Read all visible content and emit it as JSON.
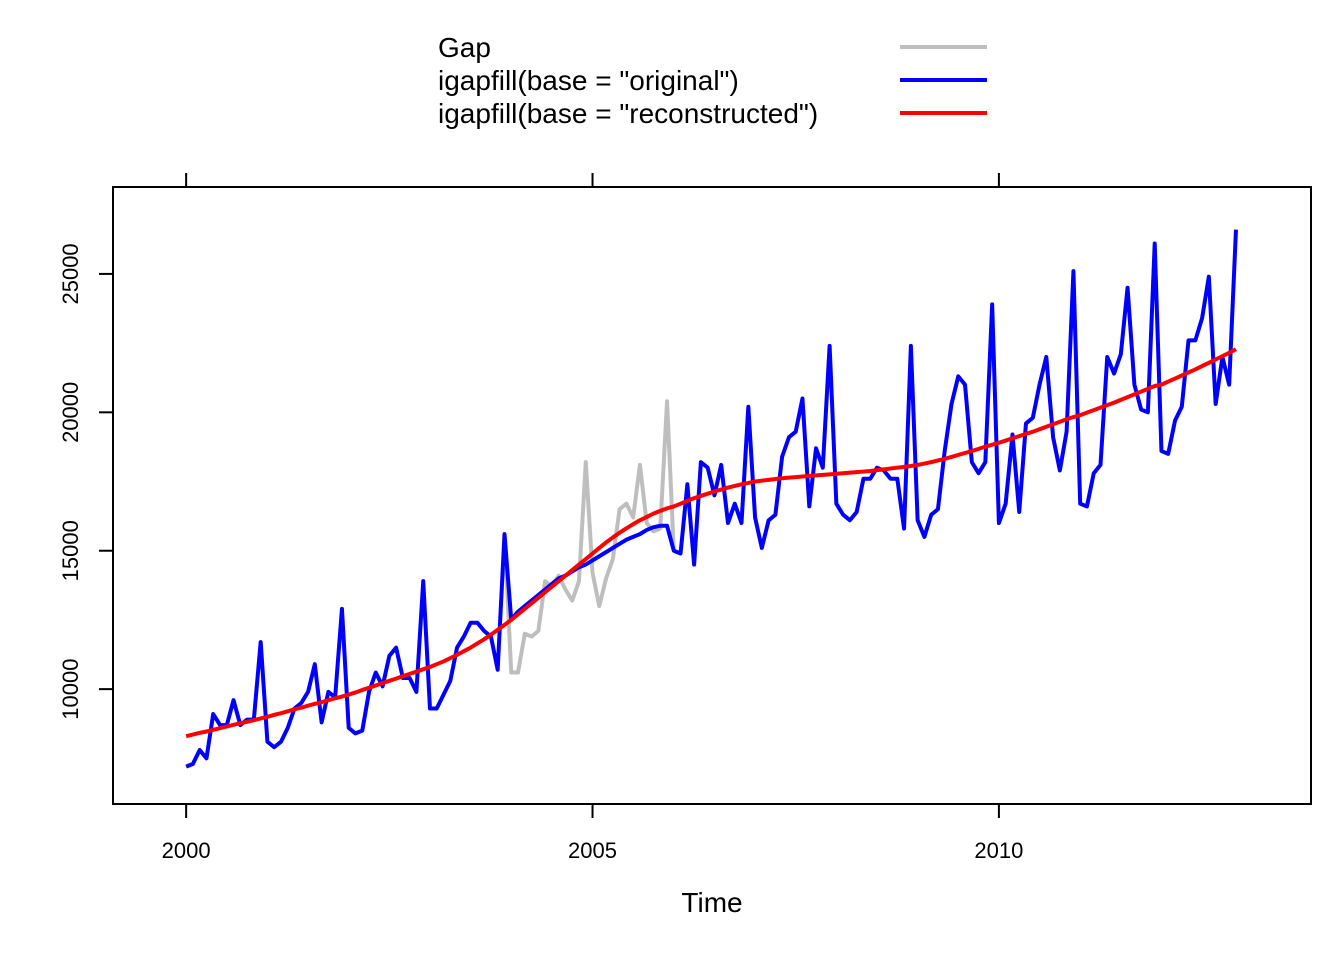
{
  "chart_data": {
    "type": "line",
    "xlabel": "Time",
    "x": [
      2000,
      2000.083,
      2000.167,
      2000.25,
      2000.333,
      2000.417,
      2000.5,
      2000.583,
      2000.667,
      2000.75,
      2000.833,
      2000.917,
      2001,
      2001.083,
      2001.167,
      2001.25,
      2001.333,
      2001.417,
      2001.5,
      2001.583,
      2001.667,
      2001.75,
      2001.833,
      2001.917,
      2002,
      2002.083,
      2002.167,
      2002.25,
      2002.333,
      2002.417,
      2002.5,
      2002.583,
      2002.667,
      2002.75,
      2002.833,
      2002.917,
      2003,
      2003.083,
      2003.167,
      2003.25,
      2003.333,
      2003.417,
      2003.5,
      2003.583,
      2003.667,
      2003.75,
      2003.833,
      2003.917,
      2004,
      2004.083,
      2004.167,
      2004.25,
      2004.333,
      2004.417,
      2004.5,
      2004.583,
      2004.667,
      2004.75,
      2004.833,
      2004.917,
      2005,
      2005.083,
      2005.167,
      2005.25,
      2005.333,
      2005.417,
      2005.5,
      2005.583,
      2005.667,
      2005.75,
      2005.833,
      2005.917,
      2006,
      2006.083,
      2006.167,
      2006.25,
      2006.333,
      2006.417,
      2006.5,
      2006.583,
      2006.667,
      2006.75,
      2006.833,
      2006.917,
      2007,
      2007.083,
      2007.167,
      2007.25,
      2007.333,
      2007.417,
      2007.5,
      2007.583,
      2007.667,
      2007.75,
      2007.833,
      2007.917,
      2008,
      2008.083,
      2008.167,
      2008.25,
      2008.333,
      2008.417,
      2008.5,
      2008.583,
      2008.667,
      2008.75,
      2008.833,
      2008.917,
      2009,
      2009.083,
      2009.167,
      2009.25,
      2009.333,
      2009.417,
      2009.5,
      2009.583,
      2009.667,
      2009.75,
      2009.833,
      2009.917,
      2010,
      2010.083,
      2010.167,
      2010.25,
      2010.333,
      2010.417,
      2010.5,
      2010.583,
      2010.667,
      2010.75,
      2010.833,
      2010.917,
      2011,
      2011.083,
      2011.167,
      2011.25,
      2011.333,
      2011.417,
      2011.5,
      2011.583,
      2011.667,
      2011.75,
      2011.833,
      2011.917,
      2012,
      2012.083,
      2012.167,
      2012.25,
      2012.333,
      2012.417,
      2012.5,
      2012.583,
      2012.667,
      2012.75,
      2012.833,
      2012.917
    ],
    "series": [
      {
        "name": "Gap",
        "color": "#bebebe",
        "values": [
          null,
          null,
          null,
          null,
          null,
          null,
          null,
          null,
          null,
          null,
          null,
          null,
          null,
          null,
          null,
          null,
          null,
          null,
          null,
          null,
          null,
          null,
          null,
          null,
          null,
          null,
          null,
          null,
          null,
          null,
          null,
          null,
          null,
          null,
          null,
          null,
          null,
          null,
          null,
          null,
          null,
          null,
          null,
          null,
          null,
          null,
          null,
          15600,
          10600,
          10600,
          12000,
          11900,
          12100,
          13900,
          13700,
          14100,
          13600,
          13200,
          13900,
          18200,
          14200,
          13000,
          14000,
          14700,
          16500,
          16700,
          16200,
          18100,
          16000,
          15700,
          15800,
          20400,
          15000,
          null,
          null,
          null,
          null,
          null,
          null,
          null,
          null,
          null,
          null,
          null,
          null,
          null,
          null,
          null,
          null,
          null,
          null,
          null,
          null,
          null,
          null,
          null,
          null,
          null,
          null,
          null,
          null,
          null,
          null,
          null,
          null,
          null,
          null,
          null,
          null,
          null,
          null,
          null,
          null,
          null,
          null,
          null,
          null,
          null,
          null,
          null,
          null,
          null,
          null,
          null,
          null,
          null,
          null,
          null,
          null,
          null,
          null,
          null,
          null,
          null,
          null,
          null,
          null,
          null,
          null,
          null,
          null,
          null,
          null,
          null,
          null,
          null,
          null,
          null,
          null,
          null,
          null,
          null,
          null,
          null,
          null,
          null
        ]
      },
      {
        "name": "igapfill(base = \"original\")",
        "color": "#0000ff",
        "values": [
          7200,
          7300,
          7800,
          7500,
          9100,
          8700,
          8700,
          9600,
          8700,
          8900,
          8900,
          11700,
          8100,
          7900,
          8100,
          8600,
          9300,
          9500,
          9900,
          10900,
          8800,
          9900,
          9700,
          12900,
          8600,
          8400,
          8500,
          9900,
          10600,
          10100,
          11200,
          11500,
          10400,
          10400,
          9900,
          13900,
          9300,
          9300,
          9800,
          10300,
          11500,
          11900,
          12400,
          12400,
          12100,
          11900,
          10700,
          15600,
          12500,
          12800,
          13000,
          13200,
          13400,
          13600,
          13800,
          14000,
          14100,
          14250,
          14400,
          14500,
          14650,
          14800,
          14950,
          15100,
          15250,
          15400,
          15500,
          15600,
          15750,
          15850,
          15900,
          15900,
          15000,
          14900,
          17400,
          14500,
          18200,
          18000,
          17000,
          18100,
          16000,
          16700,
          16000,
          20200,
          16200,
          15100,
          16100,
          16300,
          18400,
          19100,
          19300,
          20500,
          16600,
          18700,
          18000,
          22400,
          16700,
          16300,
          16100,
          16400,
          17600,
          17600,
          18000,
          17900,
          17600,
          17600,
          15800,
          22400,
          16100,
          15500,
          16300,
          16500,
          18600,
          20300,
          21300,
          21000,
          18200,
          17800,
          18200,
          23900,
          16000,
          16700,
          19200,
          16400,
          19600,
          19800,
          21000,
          22000,
          19100,
          17900,
          19300,
          25100,
          16700,
          16600,
          17800,
          18100,
          22000,
          21400,
          22100,
          24500,
          21000,
          20100,
          20000,
          26100,
          18600,
          18500,
          19700,
          20200,
          22600,
          22600,
          23400,
          24900,
          20300,
          22000,
          21000,
          26600
        ]
      },
      {
        "name": "igapfill(base = \"reconstructed\")",
        "color": "#ff0000",
        "values": [
          8300,
          8360,
          8420,
          8470,
          8530,
          8590,
          8650,
          8710,
          8770,
          8820,
          8880,
          8940,
          9000,
          9070,
          9130,
          9200,
          9270,
          9330,
          9400,
          9470,
          9530,
          9600,
          9670,
          9730,
          9800,
          9880,
          9970,
          10050,
          10130,
          10220,
          10300,
          10380,
          10470,
          10550,
          10630,
          10720,
          10800,
          10900,
          11000,
          11120,
          11240,
          11370,
          11500,
          11650,
          11800,
          11970,
          12140,
          12320,
          12500,
          12700,
          12900,
          13100,
          13300,
          13500,
          13700,
          13900,
          14100,
          14300,
          14500,
          14700,
          14900,
          15100,
          15300,
          15480,
          15650,
          15810,
          15960,
          16100,
          16220,
          16340,
          16440,
          16530,
          16600,
          16700,
          16800,
          16900,
          16980,
          17060,
          17140,
          17210,
          17280,
          17340,
          17400,
          17450,
          17500,
          17530,
          17560,
          17590,
          17620,
          17640,
          17660,
          17680,
          17700,
          17720,
          17740,
          17760,
          17780,
          17800,
          17820,
          17840,
          17860,
          17880,
          17910,
          17940,
          17970,
          18000,
          18030,
          18060,
          18100,
          18150,
          18200,
          18260,
          18320,
          18390,
          18460,
          18530,
          18600,
          18680,
          18760,
          18830,
          18900,
          18980,
          19060,
          19140,
          19220,
          19300,
          19390,
          19480,
          19570,
          19660,
          19750,
          19830,
          19900,
          19990,
          20080,
          20170,
          20260,
          20350,
          20450,
          20550,
          20650,
          20750,
          20850,
          20950,
          21000,
          21110,
          21220,
          21330,
          21440,
          21550,
          21670,
          21790,
          21910,
          22030,
          22150,
          22280
        ]
      }
    ],
    "xlim": [
      1999.1,
      2013.84
    ],
    "xticks": [
      2000,
      2005,
      2010
    ],
    "ylim": [
      5850,
      28140
    ],
    "yticks": [
      10000,
      15000,
      20000,
      25000
    ],
    "legend": "top"
  }
}
